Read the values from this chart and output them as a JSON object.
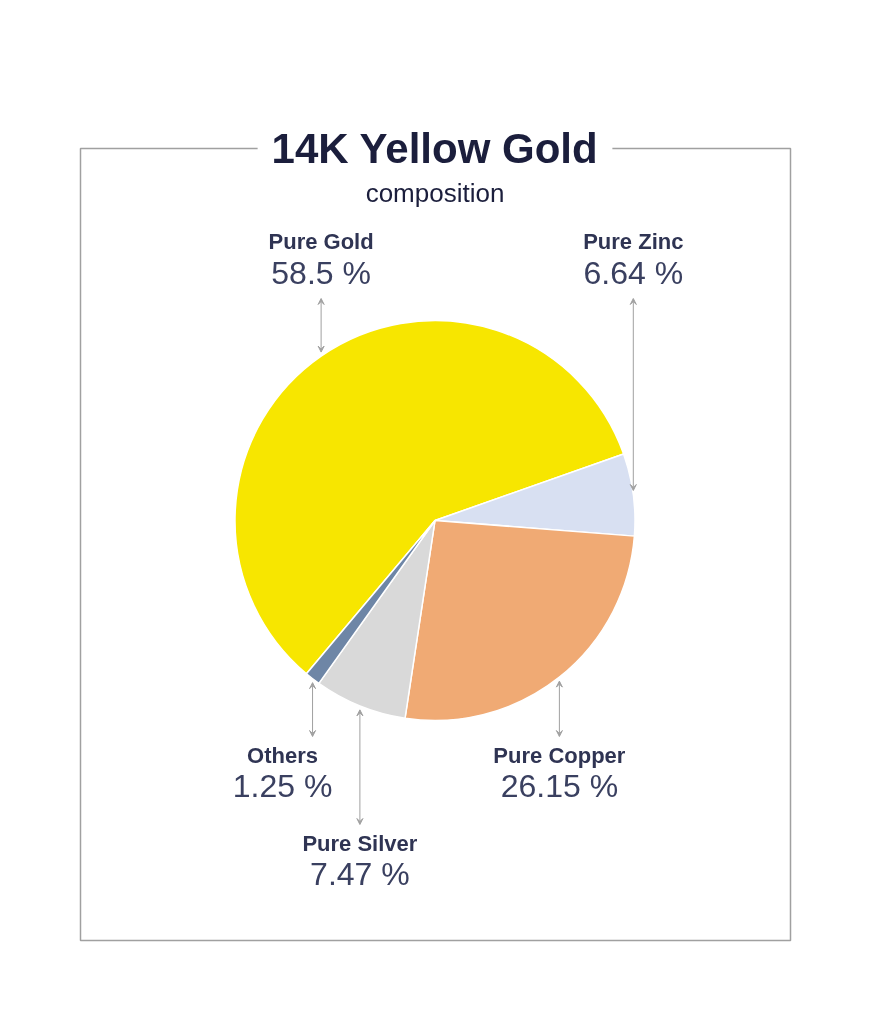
{
  "chart_data": {
    "type": "pie",
    "title": "14K Yellow Gold",
    "subtitle": "composition",
    "categories": [
      "Pure Gold",
      "Pure Zinc",
      "Pure Copper",
      "Pure Silver",
      "Others"
    ],
    "values": [
      58.5,
      6.64,
      26.15,
      7.47,
      1.25
    ],
    "colors": [
      "#f7e600",
      "#d8e0f2",
      "#f0aa74",
      "#d9d9d9",
      "#6e86a6"
    ],
    "value_labels": [
      "58.5 %",
      "6.64 %",
      "26.15 %",
      "7.47 %",
      "1.25 %"
    ]
  }
}
